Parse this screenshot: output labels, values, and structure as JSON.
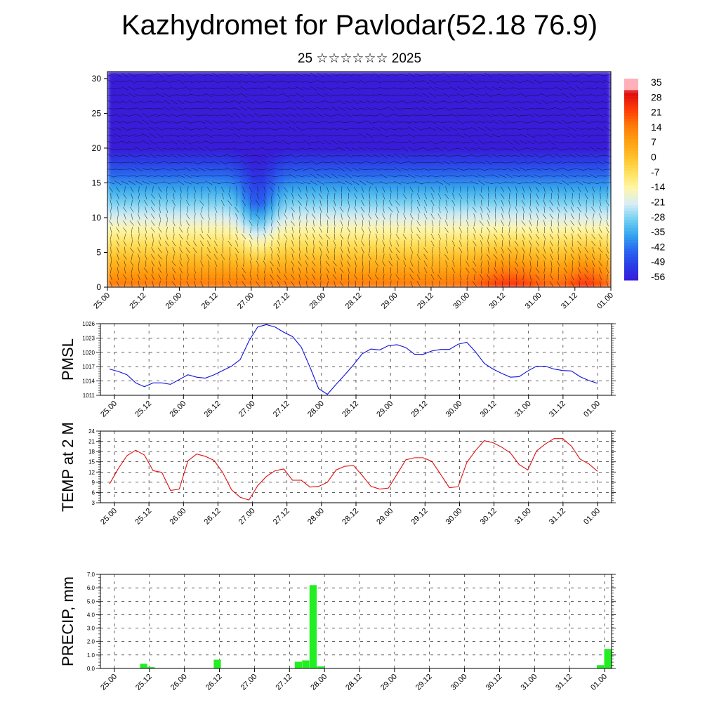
{
  "header": {
    "title": "Kazhydromet for Pavlodar(52.18 76.9)",
    "subtitle": "25 ☆☆☆☆☆☆ 2025"
  },
  "colors": {
    "pmsl_line": "#1010dd",
    "temp_line": "#dd1010",
    "precip_bar": "#22ee22",
    "grid": "#000000"
  },
  "chart_data": [
    {
      "type": "heatmap",
      "title": "",
      "xlabel": "",
      "ylabel": "",
      "ylim": [
        0,
        31
      ],
      "y_ticks": [
        0,
        5,
        10,
        15,
        20,
        25,
        30
      ],
      "x_ticks": [
        "25.00",
        "25.12",
        "26.00",
        "26.12",
        "27.00",
        "27.12",
        "28.00",
        "28.12",
        "29.00",
        "29.12",
        "30.00",
        "30.12",
        "31.00",
        "31.12",
        "01.00"
      ],
      "colorbar_labels": [
        "35",
        "28",
        "21",
        "14",
        "7",
        "0",
        "-7",
        "-14",
        "-21",
        "-28",
        "-35",
        "-42",
        "-49",
        "-56"
      ],
      "colormap": [
        "#7a28d8",
        "#3a18d8",
        "#2a3ae6",
        "#2a66f0",
        "#34a6ee",
        "#74d0f2",
        "#d8eef6",
        "#fff6a8",
        "#ffe05c",
        "#ffc02a",
        "#ffa010",
        "#ff7a08",
        "#ff3c06",
        "#e01010",
        "#ffb0b8"
      ]
    },
    {
      "type": "line",
      "title": "",
      "xlabel": "",
      "ylabel": "PMSL",
      "ylim": [
        1011,
        1026
      ],
      "y_ticks": [
        1011,
        1014,
        1017,
        1020,
        1023,
        1026
      ],
      "x_ticks": [
        "25.00",
        "25.12",
        "26.00",
        "26.12",
        "27.00",
        "27.12",
        "28.00",
        "28.12",
        "29.00",
        "29.12",
        "30.00",
        "30.12",
        "31.00",
        "31.12",
        "01.00"
      ],
      "series": [
        {
          "values": [
            1016.5,
            1016,
            1015.3,
            1013.6,
            1012.8,
            1013.6,
            1013.6,
            1013.3,
            1014.3,
            1015.3,
            1014.8,
            1014.6,
            1015.3,
            1016.2,
            1017.1,
            1018.5,
            1022.4,
            1025.3,
            1025.8,
            1025.3,
            1024.2,
            1023.3,
            1021.1,
            1016.9,
            1012.4,
            1011.2,
            1013.3,
            1015.3,
            1017.4,
            1019.7,
            1020.7,
            1020.5,
            1021.4,
            1021.6,
            1021,
            1019.6,
            1019.6,
            1020.3,
            1020.6,
            1020.6,
            1021.7,
            1022.1,
            1020.1,
            1017.7,
            1016.5,
            1015.6,
            1014.8,
            1014.9,
            1016.1,
            1017.1,
            1017.1,
            1016.5,
            1016.2,
            1016.1,
            1014.9,
            1014.1,
            1013.5
          ]
        }
      ]
    },
    {
      "type": "line",
      "title": "",
      "xlabel": "",
      "ylabel": "TEMP at 2 M",
      "ylim": [
        3,
        24
      ],
      "y_ticks": [
        3,
        6,
        9,
        12,
        15,
        18,
        21,
        24
      ],
      "x_ticks": [
        "25.00",
        "25.12",
        "26.00",
        "26.12",
        "27.00",
        "27.12",
        "28.00",
        "28.12",
        "29.00",
        "29.12",
        "30.00",
        "30.12",
        "31.00",
        "31.12",
        "01.00"
      ],
      "series": [
        {
          "values": [
            8.5,
            13,
            16.8,
            18.4,
            17,
            12.4,
            11.9,
            6.6,
            7,
            15.3,
            17.3,
            16.6,
            15.4,
            11.8,
            6.8,
            4.6,
            3.8,
            8,
            10.7,
            12.4,
            12.9,
            9.6,
            9.6,
            7.6,
            7.8,
            9,
            12.6,
            13.7,
            13.9,
            11,
            7.8,
            7,
            7.3,
            11.4,
            15.6,
            16.2,
            16.2,
            15.1,
            11.3,
            7.4,
            7.7,
            14.8,
            18.3,
            21.2,
            20.6,
            19.3,
            17.6,
            14.2,
            12.6,
            18.2,
            20.2,
            21.8,
            21.8,
            19.6,
            15.8,
            14.4,
            12.2
          ]
        }
      ]
    },
    {
      "type": "bar",
      "title": "",
      "xlabel": "",
      "ylabel": "PRECIP, mm",
      "ylim": [
        0,
        7
      ],
      "y_ticks": [
        "0.0",
        "1.0",
        "2.0",
        "3.0",
        "4.0",
        "5.0",
        "6.0",
        "7.0"
      ],
      "x_ticks": [
        "25.00",
        "25.12",
        "26.00",
        "26.12",
        "27.00",
        "27.12",
        "28.00",
        "28.12",
        "29.00",
        "29.12",
        "30.00",
        "30.12",
        "31.00",
        "31.12",
        "01.00"
      ],
      "values": [
        0,
        0,
        0,
        0,
        0,
        0.35,
        0.1,
        0,
        0,
        0,
        0,
        0,
        0,
        0,
        0,
        0.65,
        0,
        0,
        0,
        0,
        0,
        0,
        0,
        0,
        0,
        0,
        0.5,
        0.6,
        6.2,
        0.15,
        0,
        0,
        0,
        0,
        0,
        0,
        0,
        0,
        0,
        0,
        0,
        0,
        0,
        0,
        0,
        0,
        0,
        0,
        0,
        0,
        0,
        0,
        0,
        0,
        0,
        0,
        0,
        0,
        0,
        0,
        0,
        0,
        0,
        0,
        0,
        0,
        0,
        0.25,
        1.45
      ]
    }
  ]
}
